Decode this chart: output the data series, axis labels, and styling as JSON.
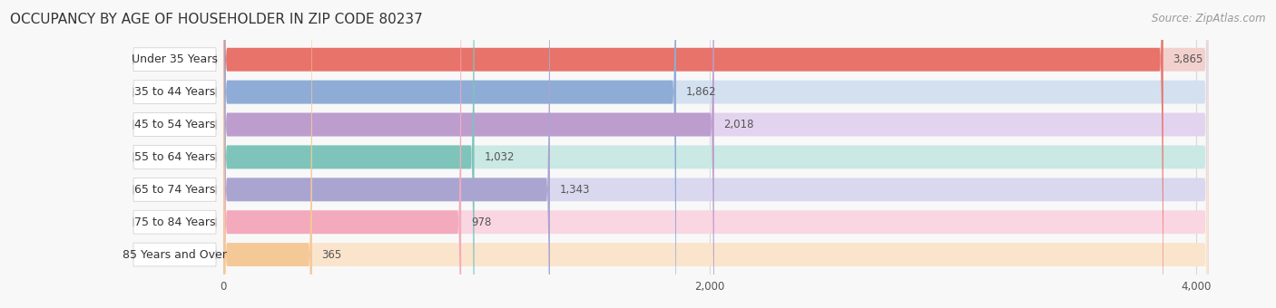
{
  "title": "OCCUPANCY BY AGE OF HOUSEHOLDER IN ZIP CODE 80237",
  "source": "Source: ZipAtlas.com",
  "categories": [
    "Under 35 Years",
    "35 to 44 Years",
    "45 to 54 Years",
    "55 to 64 Years",
    "65 to 74 Years",
    "75 to 84 Years",
    "85 Years and Over"
  ],
  "values": [
    3865,
    1862,
    2018,
    1032,
    1343,
    978,
    365
  ],
  "bar_colors": [
    "#E8736A",
    "#8FACD6",
    "#BC9DCE",
    "#7EC4BA",
    "#A9A5D0",
    "#F2AABC",
    "#F5C898"
  ],
  "bar_bg_colors": [
    "#F2D0CD",
    "#D3E0EF",
    "#E2D3EE",
    "#CAE8E4",
    "#DAD8EF",
    "#FAD5E2",
    "#FAE4CC"
  ],
  "label_bg_color": "#ffffff",
  "grid_color": "#d8d8d8",
  "xlim_min": -50,
  "xlim_max": 4200,
  "xticks": [
    0,
    2000,
    4000
  ],
  "title_fontsize": 11,
  "source_fontsize": 8.5,
  "label_fontsize": 9,
  "value_fontsize": 8.5,
  "background_color": "#f8f8f8"
}
